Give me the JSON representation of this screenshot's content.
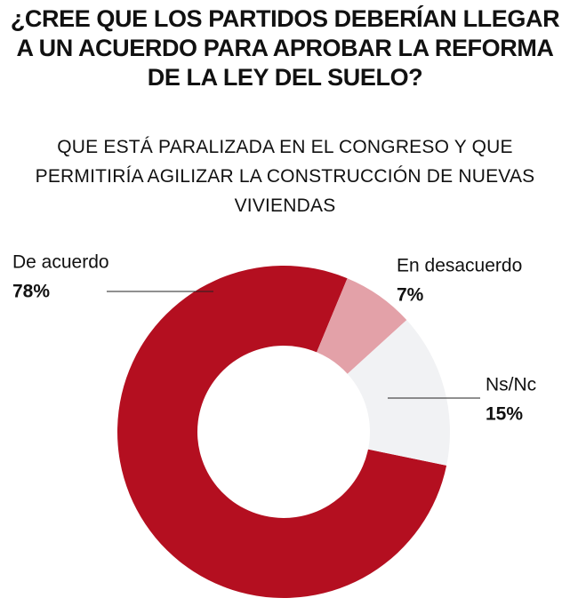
{
  "chart_data": {
    "type": "donut",
    "title": "¿CREE QUE LOS PARTIDOS DEBERÍAN LLEGAR A UN ACUERDO PARA APROBAR LA REFORMA DE LA LEY DEL SUELO?",
    "subtitle": "QUE ESTÁ PARALIZADA EN EL CONGRESO Y QUE PERMITIRÍA AGILIZAR LA CONSTRUCCIÓN DE NUEVAS VIVIENDAS",
    "categories": [
      "De acuerdo",
      "En desacuerdo",
      "Ns/Nc"
    ],
    "values": [
      78,
      7,
      15
    ],
    "value_labels": [
      "78%",
      "7%",
      "15%"
    ],
    "colors": [
      "#b40f20",
      "#e3a1a8",
      "#f1f2f4"
    ]
  }
}
